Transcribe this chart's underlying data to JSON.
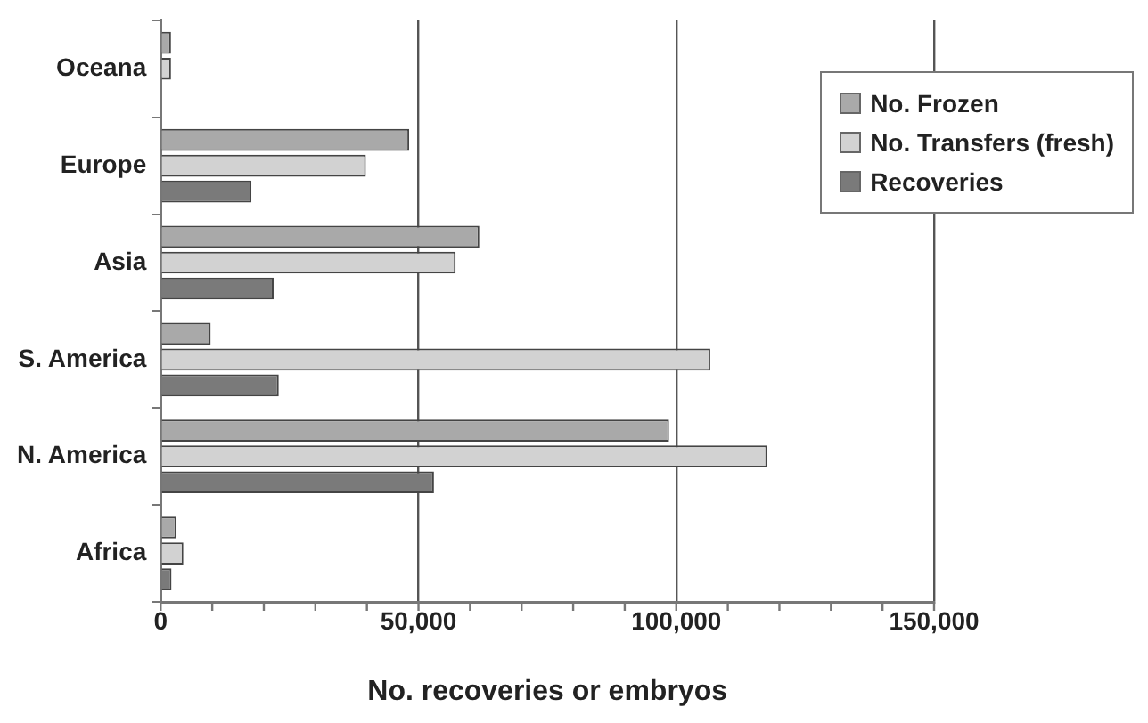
{
  "chart_data": {
    "type": "bar",
    "orientation": "horizontal",
    "xlabel": "No. recoveries or embryos",
    "categories": [
      "Oceana",
      "Europe",
      "Asia",
      "S. America",
      "N. America",
      "Africa"
    ],
    "series": [
      {
        "name": "No. Frozen",
        "color": "#a9a9a9",
        "values": [
          2000,
          48200,
          61800,
          9700,
          98600,
          3000
        ]
      },
      {
        "name": "No. Transfers (fresh)",
        "color": "#d2d2d2",
        "values": [
          2000,
          39800,
          57200,
          106600,
          117600,
          4400
        ]
      },
      {
        "name": "Recoveries",
        "color": "#7a7a7a",
        "values": [
          null,
          17600,
          21900,
          22900,
          53000,
          2100
        ]
      }
    ],
    "xlim": [
      0,
      150000
    ],
    "xticks": [
      0,
      {
        "value": 10000,
        "label": null
      },
      {
        "value": 20000,
        "label": null
      },
      {
        "value": 30000,
        "label": null
      },
      {
        "value": 40000,
        "label": null
      },
      {
        "value": 50000,
        "label": "50,000"
      },
      {
        "value": 60000,
        "label": null
      },
      {
        "value": 70000,
        "label": null
      },
      {
        "value": 80000,
        "label": null
      },
      {
        "value": 90000,
        "label": null
      },
      {
        "value": 100000,
        "label": "100,000"
      },
      {
        "value": 110000,
        "label": null
      },
      {
        "value": 120000,
        "label": null
      },
      {
        "value": 130000,
        "label": null
      },
      {
        "value": 140000,
        "label": null
      },
      {
        "value": 150000,
        "label": "150,000"
      }
    ],
    "grid": "x",
    "legend": "top right"
  }
}
